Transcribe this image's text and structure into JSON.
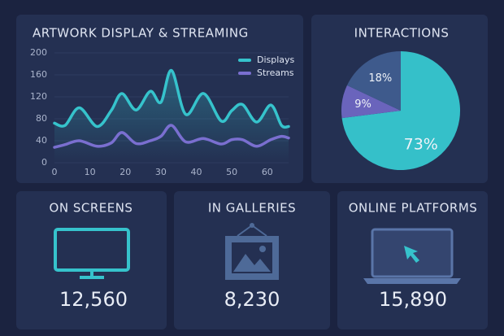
{
  "chart_data": [
    {
      "type": "line",
      "title": "ARTWORK DISPLAY & STREAMING",
      "x": [
        0,
        3,
        7,
        12,
        16,
        19,
        23,
        27,
        30,
        33,
        37,
        42,
        47,
        50,
        53,
        57,
        61,
        64,
        66
      ],
      "series": [
        {
          "name": "Displays",
          "color": "#36c3cc",
          "values": [
            72,
            68,
            100,
            66,
            95,
            126,
            96,
            130,
            110,
            168,
            88,
            126,
            76,
            95,
            106,
            74,
            105,
            68,
            66
          ]
        },
        {
          "name": "Streams",
          "color": "#7a6fd0",
          "values": [
            28,
            33,
            40,
            30,
            36,
            55,
            35,
            40,
            48,
            68,
            38,
            44,
            34,
            42,
            42,
            30,
            42,
            48,
            45
          ]
        }
      ],
      "xlim": [
        0,
        66
      ],
      "xticks": [
        0,
        10,
        20,
        30,
        40,
        50,
        60
      ],
      "ylim": [
        0,
        200
      ],
      "yticks": [
        0,
        40,
        80,
        120,
        160,
        200
      ],
      "legend": "top-right"
    },
    {
      "type": "pie",
      "title": "INTERACTIONS",
      "values": [
        73,
        9,
        18
      ],
      "value_labels": [
        "73%",
        "9%",
        "18%"
      ],
      "colors": [
        "#35c0c9",
        "#6a64bc",
        "#3e5a8c"
      ]
    }
  ],
  "cards": [
    {
      "title": "ON SCREENS",
      "value": "12,560"
    },
    {
      "title": "IN GALLERIES",
      "value": "8,230"
    },
    {
      "title": "ONLINE PLATFORMS",
      "value": "15,890"
    }
  ]
}
